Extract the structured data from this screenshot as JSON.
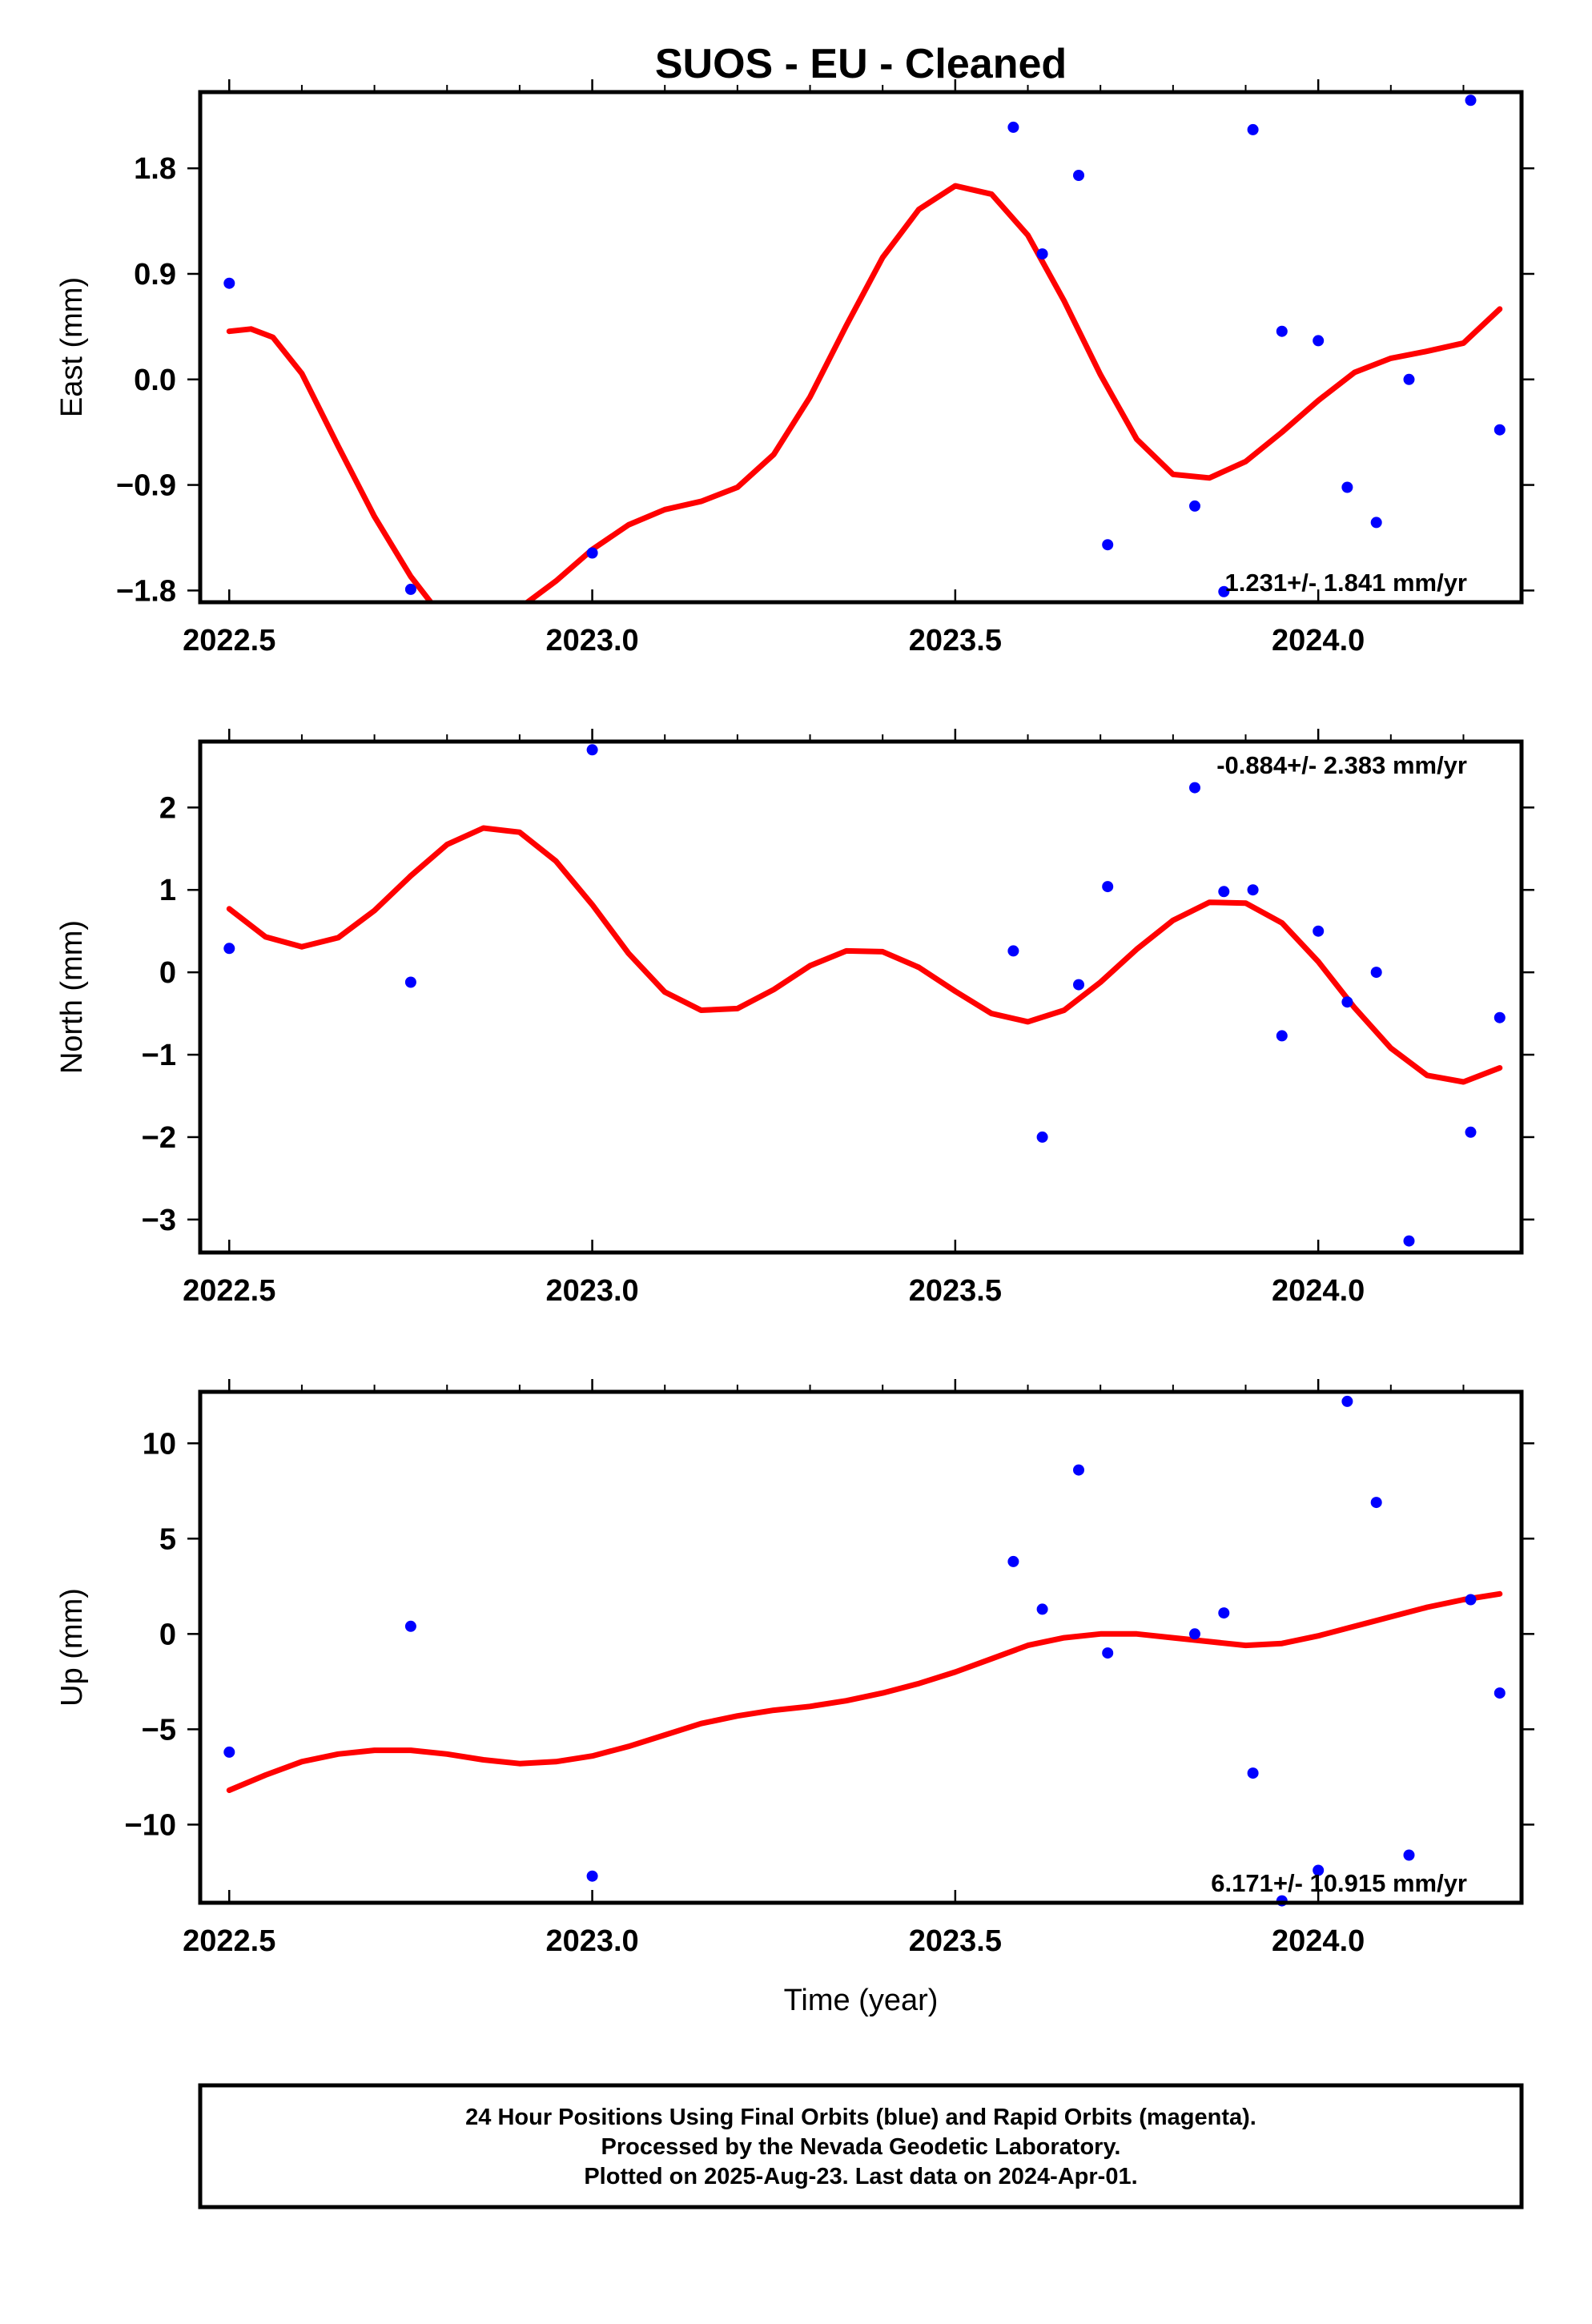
{
  "page": {
    "title": "SUOS  - EU - Cleaned",
    "footer_lines": [
      "24 Hour Positions Using Final Orbits (blue) and Rapid Orbits (magenta).",
      "Processed by the Nevada Geodetic Laboratory.",
      "Plotted on 2025-Aug-23. Last data on 2024-Apr-01."
    ]
  },
  "colors": {
    "points": "#0000ff",
    "fit": "#ff0000",
    "frame": "#000000"
  },
  "chart_data": [
    {
      "id": "east",
      "type": "scatter",
      "ylabel": "East (mm)",
      "xlabel": "",
      "xlim": [
        2022.46,
        2024.28
      ],
      "ylim": [
        -1.9,
        2.45
      ],
      "xticks": [
        2022.5,
        2023.0,
        2023.5,
        2024.0
      ],
      "xtick_labels": [
        "2022.5",
        "2023.0",
        "2023.5",
        "2024.0"
      ],
      "yticks": [
        -1.8,
        -0.9,
        0.0,
        0.9,
        1.8
      ],
      "ytick_labels": [
        "−1.8",
        "−0.9",
        "0.0",
        "0.9",
        "1.8"
      ],
      "rate_label": "1.231+/- 1.841 mm/yr",
      "rate_position": "bottom-right",
      "points": [
        [
          2022.5,
          0.82
        ],
        [
          2022.75,
          -1.79
        ],
        [
          2023.0,
          -1.48
        ],
        [
          2023.58,
          2.15
        ],
        [
          2023.62,
          1.07
        ],
        [
          2023.67,
          1.74
        ],
        [
          2023.71,
          -1.41
        ],
        [
          2023.83,
          -1.08
        ],
        [
          2023.87,
          -1.81
        ],
        [
          2023.91,
          2.13
        ],
        [
          2023.95,
          0.41
        ],
        [
          2024.0,
          0.33
        ],
        [
          2024.04,
          -0.92
        ],
        [
          2024.08,
          -1.22
        ],
        [
          2024.125,
          0.0
        ],
        [
          2024.21,
          2.38
        ],
        [
          2024.25,
          -0.43
        ]
      ],
      "fit": [
        [
          2022.5,
          0.41
        ],
        [
          2022.53,
          0.43
        ],
        [
          2022.56,
          0.36
        ],
        [
          2022.6,
          0.05
        ],
        [
          2022.65,
          -0.57
        ],
        [
          2022.7,
          -1.17
        ],
        [
          2022.75,
          -1.68
        ],
        [
          2022.78,
          -1.92
        ],
        [
          2022.8,
          -2.05
        ],
        [
          2022.85,
          -2.12
        ],
        [
          2022.9,
          -1.95
        ],
        [
          2022.95,
          -1.72
        ],
        [
          2023.0,
          -1.45
        ],
        [
          2023.05,
          -1.24
        ],
        [
          2023.1,
          -1.11
        ],
        [
          2023.15,
          -1.04
        ],
        [
          2023.2,
          -0.92
        ],
        [
          2023.25,
          -0.64
        ],
        [
          2023.3,
          -0.15
        ],
        [
          2023.35,
          0.46
        ],
        [
          2023.4,
          1.04
        ],
        [
          2023.45,
          1.45
        ],
        [
          2023.5,
          1.65
        ],
        [
          2023.55,
          1.58
        ],
        [
          2023.6,
          1.23
        ],
        [
          2023.65,
          0.67
        ],
        [
          2023.7,
          0.04
        ],
        [
          2023.75,
          -0.51
        ],
        [
          2023.8,
          -0.81
        ],
        [
          2023.85,
          -0.84
        ],
        [
          2023.9,
          -0.7
        ],
        [
          2023.95,
          -0.45
        ],
        [
          2024.0,
          -0.18
        ],
        [
          2024.05,
          0.06
        ],
        [
          2024.1,
          0.18
        ],
        [
          2024.15,
          0.24
        ],
        [
          2024.2,
          0.31
        ],
        [
          2024.25,
          0.6
        ]
      ]
    },
    {
      "id": "north",
      "type": "scatter",
      "ylabel": "North (mm)",
      "xlabel": "",
      "xlim": [
        2022.46,
        2024.28
      ],
      "ylim": [
        -3.4,
        2.8
      ],
      "xticks": [
        2022.5,
        2023.0,
        2023.5,
        2024.0
      ],
      "xtick_labels": [
        "2022.5",
        "2023.0",
        "2023.5",
        "2024.0"
      ],
      "yticks": [
        -3,
        -2,
        -1,
        0,
        1,
        2
      ],
      "ytick_labels": [
        "−3",
        "−2",
        "−1",
        "0",
        "1",
        "2"
      ],
      "rate_label": "-0.884+/- 2.383 mm/yr",
      "rate_position": "top-right",
      "points": [
        [
          2022.5,
          0.29
        ],
        [
          2022.75,
          -0.12
        ],
        [
          2023.0,
          2.7
        ],
        [
          2023.58,
          0.26
        ],
        [
          2023.62,
          -2.0
        ],
        [
          2023.67,
          -0.15
        ],
        [
          2023.71,
          1.04
        ],
        [
          2023.83,
          2.24
        ],
        [
          2023.87,
          0.98
        ],
        [
          2023.91,
          1.0
        ],
        [
          2023.95,
          -0.77
        ],
        [
          2024.0,
          0.5
        ],
        [
          2024.04,
          -0.36
        ],
        [
          2024.08,
          0.0
        ],
        [
          2024.125,
          -3.26
        ],
        [
          2024.21,
          -1.94
        ],
        [
          2024.25,
          -0.55
        ]
      ],
      "fit": [
        [
          2022.5,
          0.77
        ],
        [
          2022.55,
          0.43
        ],
        [
          2022.6,
          0.31
        ],
        [
          2022.65,
          0.42
        ],
        [
          2022.7,
          0.75
        ],
        [
          2022.75,
          1.17
        ],
        [
          2022.8,
          1.55
        ],
        [
          2022.85,
          1.75
        ],
        [
          2022.9,
          1.7
        ],
        [
          2022.95,
          1.35
        ],
        [
          2023.0,
          0.82
        ],
        [
          2023.05,
          0.23
        ],
        [
          2023.1,
          -0.24
        ],
        [
          2023.15,
          -0.46
        ],
        [
          2023.2,
          -0.44
        ],
        [
          2023.25,
          -0.21
        ],
        [
          2023.3,
          0.08
        ],
        [
          2023.35,
          0.26
        ],
        [
          2023.4,
          0.25
        ],
        [
          2023.45,
          0.06
        ],
        [
          2023.5,
          -0.23
        ],
        [
          2023.55,
          -0.5
        ],
        [
          2023.6,
          -0.6
        ],
        [
          2023.65,
          -0.46
        ],
        [
          2023.7,
          -0.12
        ],
        [
          2023.75,
          0.28
        ],
        [
          2023.8,
          0.63
        ],
        [
          2023.85,
          0.85
        ],
        [
          2023.9,
          0.84
        ],
        [
          2023.95,
          0.6
        ],
        [
          2024.0,
          0.13
        ],
        [
          2024.05,
          -0.43
        ],
        [
          2024.1,
          -0.92
        ],
        [
          2024.15,
          -1.25
        ],
        [
          2024.2,
          -1.33
        ],
        [
          2024.25,
          -1.16
        ]
      ]
    },
    {
      "id": "up",
      "type": "scatter",
      "ylabel": "Up (mm)",
      "xlabel": "Time (year)",
      "xlim": [
        2022.46,
        2024.28
      ],
      "ylim": [
        -14.1,
        12.7
      ],
      "xticks": [
        2022.5,
        2023.0,
        2023.5,
        2024.0
      ],
      "xtick_labels": [
        "2022.5",
        "2023.0",
        "2023.5",
        "2024.0"
      ],
      "yticks": [
        -10,
        -5,
        0,
        5,
        10
      ],
      "ytick_labels": [
        "−10",
        "−5",
        "0",
        "5",
        "10"
      ],
      "rate_label": "6.171+/- 10.915 mm/yr",
      "rate_position": "bottom-right",
      "points": [
        [
          2022.5,
          -6.2
        ],
        [
          2022.75,
          0.4
        ],
        [
          2023.0,
          -12.7
        ],
        [
          2023.58,
          3.8
        ],
        [
          2023.62,
          1.3
        ],
        [
          2023.67,
          8.6
        ],
        [
          2023.71,
          -1.0
        ],
        [
          2023.83,
          0.0
        ],
        [
          2023.87,
          1.1
        ],
        [
          2023.91,
          -7.3
        ],
        [
          2023.95,
          -14.0
        ],
        [
          2024.0,
          -12.4
        ],
        [
          2024.04,
          12.2
        ],
        [
          2024.08,
          6.9
        ],
        [
          2024.125,
          -11.6
        ],
        [
          2024.21,
          1.8
        ],
        [
          2024.25,
          -3.1
        ]
      ],
      "fit": [
        [
          2022.5,
          -8.2
        ],
        [
          2022.55,
          -7.4
        ],
        [
          2022.6,
          -6.7
        ],
        [
          2022.65,
          -6.3
        ],
        [
          2022.7,
          -6.1
        ],
        [
          2022.75,
          -6.1
        ],
        [
          2022.8,
          -6.3
        ],
        [
          2022.85,
          -6.6
        ],
        [
          2022.9,
          -6.8
        ],
        [
          2022.95,
          -6.7
        ],
        [
          2023.0,
          -6.4
        ],
        [
          2023.05,
          -5.9
        ],
        [
          2023.1,
          -5.3
        ],
        [
          2023.15,
          -4.7
        ],
        [
          2023.2,
          -4.3
        ],
        [
          2023.25,
          -4.0
        ],
        [
          2023.3,
          -3.8
        ],
        [
          2023.35,
          -3.5
        ],
        [
          2023.4,
          -3.1
        ],
        [
          2023.45,
          -2.6
        ],
        [
          2023.5,
          -2.0
        ],
        [
          2023.55,
          -1.3
        ],
        [
          2023.6,
          -0.6
        ],
        [
          2023.65,
          -0.2
        ],
        [
          2023.7,
          0.0
        ],
        [
          2023.75,
          0.0
        ],
        [
          2023.8,
          -0.2
        ],
        [
          2023.85,
          -0.4
        ],
        [
          2023.9,
          -0.6
        ],
        [
          2023.95,
          -0.5
        ],
        [
          2024.0,
          -0.1
        ],
        [
          2024.05,
          0.4
        ],
        [
          2024.1,
          0.9
        ],
        [
          2024.15,
          1.4
        ],
        [
          2024.2,
          1.8
        ],
        [
          2024.25,
          2.1
        ]
      ]
    }
  ]
}
